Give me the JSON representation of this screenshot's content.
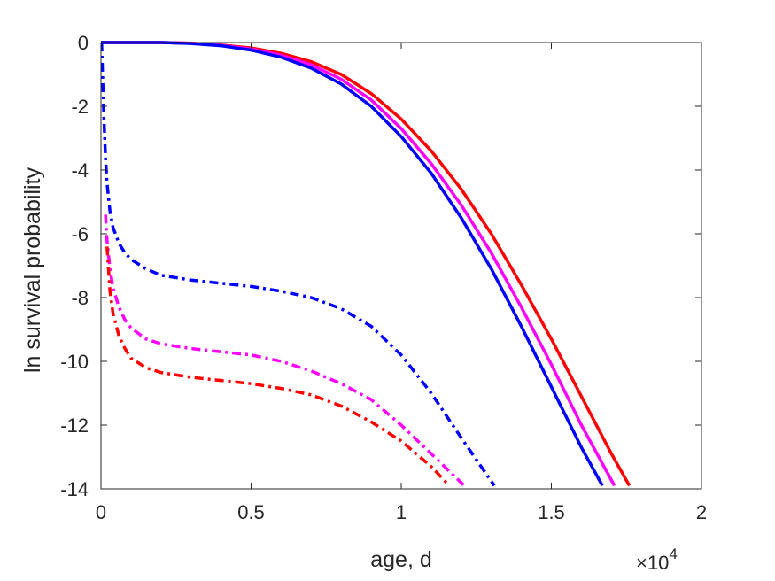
{
  "chart_data": {
    "type": "line",
    "title": "",
    "xlabel": "age, d",
    "ylabel": "ln survival probability",
    "x_multiplier_label": "×10",
    "x_multiplier_exponent": "4",
    "xlim": [
      0,
      20000
    ],
    "ylim": [
      -14,
      0
    ],
    "grid": false,
    "x_ticks": [
      0,
      5000,
      10000,
      15000,
      20000
    ],
    "x_tick_labels": [
      "0",
      "0.5",
      "1",
      "1.5",
      "2"
    ],
    "y_ticks": [
      0,
      -2,
      -4,
      -6,
      -8,
      -10,
      -12,
      -14
    ],
    "y_tick_labels": [
      "0",
      "-2",
      "-4",
      "-6",
      "-8",
      "-10",
      "-12",
      "-14"
    ],
    "series": [
      {
        "color": "#ff0000",
        "style": "solid",
        "x": [
          0,
          2000,
          3000,
          4000,
          5000,
          6000,
          7000,
          8000,
          9000,
          10000,
          11000,
          12000,
          13000,
          14000,
          15000,
          16000,
          17000,
          17600
        ],
        "y": [
          0,
          0,
          -0.02,
          -0.08,
          -0.17,
          -0.34,
          -0.6,
          -1.0,
          -1.6,
          -2.4,
          -3.4,
          -4.6,
          -6.0,
          -7.6,
          -9.3,
          -11.1,
          -12.9,
          -13.9
        ]
      },
      {
        "color": "#ff00ff",
        "style": "solid",
        "x": [
          0,
          2000,
          3000,
          4000,
          5000,
          6000,
          7000,
          8000,
          9000,
          10000,
          11000,
          12000,
          13000,
          14000,
          15000,
          16000,
          17100
        ],
        "y": [
          0,
          0,
          -0.02,
          -0.09,
          -0.2,
          -0.4,
          -0.7,
          -1.15,
          -1.8,
          -2.7,
          -3.8,
          -5.1,
          -6.6,
          -8.3,
          -10.1,
          -12.0,
          -13.9
        ]
      },
      {
        "color": "#0000ff",
        "style": "solid",
        "x": [
          0,
          2000,
          3000,
          4000,
          5000,
          6000,
          7000,
          8000,
          9000,
          10000,
          11000,
          12000,
          13000,
          14000,
          15000,
          16000,
          16700
        ],
        "y": [
          0,
          0,
          -0.03,
          -0.1,
          -0.24,
          -0.46,
          -0.8,
          -1.3,
          -2.0,
          -2.95,
          -4.1,
          -5.5,
          -7.1,
          -8.9,
          -10.8,
          -12.7,
          -13.9
        ]
      },
      {
        "color": "#0000ff",
        "style": "dashdot",
        "x": [
          20,
          60,
          100,
          150,
          200,
          300,
          400,
          600,
          800,
          1000,
          1500,
          2000,
          3000,
          4000,
          5000,
          6000,
          7000,
          8000,
          9000,
          10000,
          11000,
          12000,
          13100
        ],
        "y": [
          0,
          -1.2,
          -2.4,
          -3.6,
          -4.4,
          -5.3,
          -5.8,
          -6.3,
          -6.6,
          -6.8,
          -7.1,
          -7.3,
          -7.45,
          -7.55,
          -7.65,
          -7.8,
          -8.0,
          -8.35,
          -8.9,
          -9.8,
          -11.0,
          -12.4,
          -13.9
        ]
      },
      {
        "color": "#ff00ff",
        "style": "dashdot",
        "x": [
          150,
          200,
          300,
          400,
          600,
          800,
          1000,
          1500,
          2000,
          3000,
          4000,
          5000,
          6000,
          7000,
          8000,
          9000,
          10000,
          11000,
          12100
        ],
        "y": [
          -5.4,
          -6.2,
          -7.1,
          -7.7,
          -8.3,
          -8.7,
          -8.95,
          -9.3,
          -9.45,
          -9.6,
          -9.7,
          -9.8,
          -10.0,
          -10.3,
          -10.7,
          -11.2,
          -12.0,
          -12.9,
          -13.9
        ]
      },
      {
        "color": "#ff0000",
        "style": "dashdot",
        "x": [
          200,
          300,
          400,
          600,
          800,
          1000,
          1500,
          2000,
          3000,
          4000,
          5000,
          6000,
          7000,
          8000,
          9000,
          10000,
          11000,
          11600
        ],
        "y": [
          -6.4,
          -7.8,
          -8.5,
          -9.2,
          -9.6,
          -9.9,
          -10.2,
          -10.35,
          -10.5,
          -10.6,
          -10.7,
          -10.85,
          -11.05,
          -11.4,
          -11.9,
          -12.5,
          -13.3,
          -13.9
        ]
      }
    ]
  }
}
